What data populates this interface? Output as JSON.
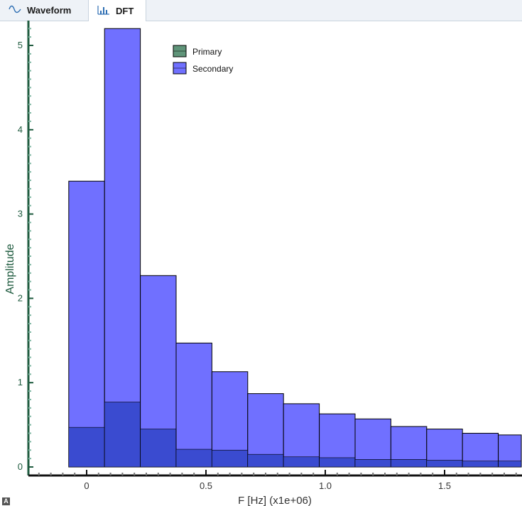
{
  "tabs": [
    {
      "label": "Waveform",
      "icon": "sine-wave-icon",
      "active": false
    },
    {
      "label": "DFT",
      "icon": "spectrum-icon",
      "active": true
    }
  ],
  "corner_badge": "A",
  "colors": {
    "primary_fill": "#3a4bd0",
    "secondary_fill": "#7070ff",
    "legend_primary": "#5f9479",
    "axis_green": "#1f5b3f",
    "xlabel": "#333333"
  },
  "chart_data": {
    "type": "bar",
    "title": "",
    "xlabel": "F [Hz] (x1e+06)",
    "ylabel": "Amplitude",
    "x_ticks": [
      0,
      0.5,
      1.0,
      1.5
    ],
    "x_tick_labels": [
      "0",
      "0.5",
      "1.0",
      "1.5"
    ],
    "y_ticks": [
      0,
      1,
      2,
      3,
      4,
      5
    ],
    "y_tick_labels": [
      "0",
      "1",
      "2",
      "3",
      "4",
      "5"
    ],
    "xlim": [
      -0.25,
      1.83
    ],
    "ylim": [
      -0.05,
      5.3
    ],
    "bin_width": 0.15,
    "bin_starts": [
      -0.075,
      0.075,
      0.225,
      0.375,
      0.525,
      0.675,
      0.825,
      0.975,
      1.125,
      1.275,
      1.425,
      1.575,
      1.725
    ],
    "legend_position": "top-left",
    "series": [
      {
        "name": "Secondary",
        "values": [
          3.39,
          5.2,
          2.27,
          1.47,
          1.13,
          0.87,
          0.75,
          0.63,
          0.57,
          0.48,
          0.45,
          0.4,
          0.38
        ]
      },
      {
        "name": "Primary",
        "values": [
          0.47,
          0.77,
          0.45,
          0.21,
          0.2,
          0.15,
          0.12,
          0.11,
          0.09,
          0.09,
          0.08,
          0.07,
          0.07
        ]
      }
    ]
  }
}
